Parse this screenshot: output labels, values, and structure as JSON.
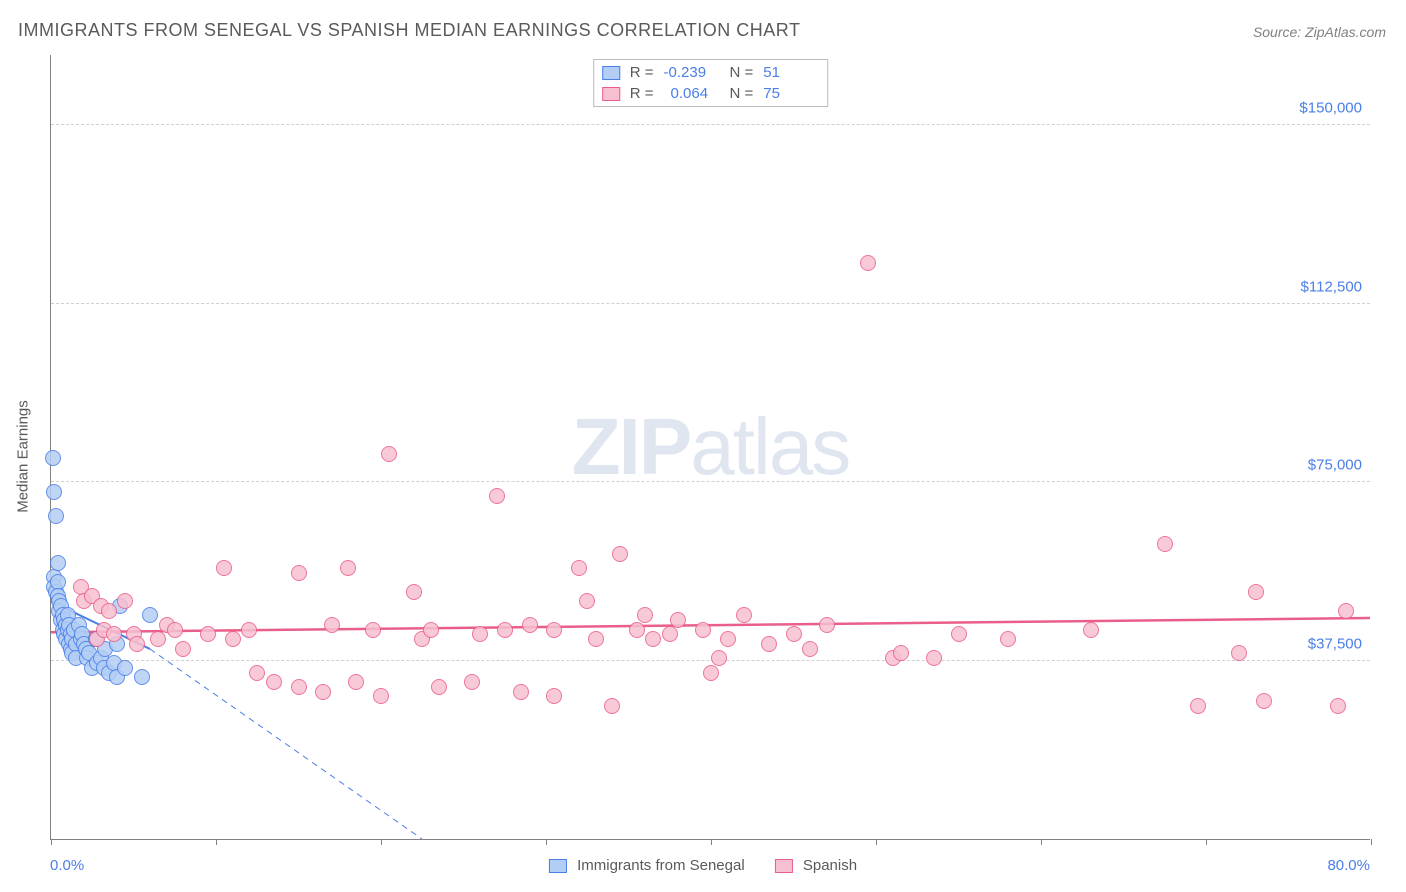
{
  "title": "IMMIGRANTS FROM SENEGAL VS SPANISH MEDIAN EARNINGS CORRELATION CHART",
  "source": "Source: ZipAtlas.com",
  "ylabel": "Median Earnings",
  "watermark_a": "ZIP",
  "watermark_b": "atlas",
  "chart": {
    "type": "scatter",
    "background_color": "#ffffff",
    "grid_color": "#d0d0d0",
    "axis_color": "#808080",
    "label_color": "#5a5a5a",
    "tick_label_color": "#4a7ee8",
    "title_fontsize": 18,
    "label_fontsize": 15,
    "xlim": [
      0,
      80
    ],
    "ylim": [
      0,
      165000
    ],
    "xtick_step": 10,
    "xmin_label": "0.0%",
    "xmax_label": "80.0%",
    "yticks": [
      {
        "value": 37500,
        "label": "$37,500"
      },
      {
        "value": 75000,
        "label": "$75,000"
      },
      {
        "value": 112500,
        "label": "$112,500"
      },
      {
        "value": 150000,
        "label": "$150,000"
      }
    ],
    "marker_radius": 8,
    "marker_stroke_width": 1.5,
    "marker_fill_opacity": 0.25,
    "series": [
      {
        "name": "Immigrants from Senegal",
        "color_stroke": "#4a7ee8",
        "color_fill": "#b3cef5",
        "r_label": "R =",
        "r_value": "-0.239",
        "n_label": "N =",
        "n_value": "51",
        "trend_line": {
          "x1": 0,
          "y1": 50000,
          "x2": 6,
          "y2": 40000,
          "width": 2,
          "dash": ""
        },
        "trend_ext": {
          "x1": 6,
          "y1": 40000,
          "x2": 22.5,
          "y2": 0,
          "width": 1,
          "dash": "6 5"
        },
        "points": [
          [
            0.1,
            80000
          ],
          [
            0.2,
            73000
          ],
          [
            0.3,
            68000
          ],
          [
            0.2,
            55000
          ],
          [
            0.2,
            53000
          ],
          [
            0.3,
            52000
          ],
          [
            0.4,
            58000
          ],
          [
            0.4,
            54000
          ],
          [
            0.4,
            51000
          ],
          [
            0.5,
            50000
          ],
          [
            0.5,
            48000
          ],
          [
            0.6,
            49000
          ],
          [
            0.6,
            46000
          ],
          [
            0.7,
            47000
          ],
          [
            0.7,
            44000
          ],
          [
            0.8,
            46000
          ],
          [
            0.8,
            43000
          ],
          [
            0.9,
            45000
          ],
          [
            0.9,
            42000
          ],
          [
            1.0,
            47000
          ],
          [
            1.0,
            44000
          ],
          [
            1.1,
            45000
          ],
          [
            1.1,
            41000
          ],
          [
            1.2,
            43000
          ],
          [
            1.2,
            40000
          ],
          [
            1.3,
            42000
          ],
          [
            1.3,
            39000
          ],
          [
            1.4,
            44000
          ],
          [
            1.5,
            41000
          ],
          [
            1.5,
            38000
          ],
          [
            1.7,
            45000
          ],
          [
            1.8,
            42000
          ],
          [
            1.9,
            43000
          ],
          [
            2.0,
            41000
          ],
          [
            2.1,
            40000
          ],
          [
            2.2,
            38000
          ],
          [
            2.3,
            39000
          ],
          [
            2.5,
            36000
          ],
          [
            2.7,
            42000
          ],
          [
            2.8,
            37000
          ],
          [
            3.0,
            38000
          ],
          [
            3.2,
            36000
          ],
          [
            3.3,
            40000
          ],
          [
            3.5,
            35000
          ],
          [
            3.8,
            37000
          ],
          [
            4.0,
            34000
          ],
          [
            4.0,
            41000
          ],
          [
            4.2,
            49000
          ],
          [
            4.5,
            36000
          ],
          [
            5.5,
            34000
          ],
          [
            6.0,
            47000
          ]
        ]
      },
      {
        "name": "Spanish",
        "color_stroke": "#ea5f8a",
        "color_fill": "#f7c0d1",
        "r_label": "R =",
        "r_value": "0.064",
        "n_label": "N =",
        "n_value": "75",
        "trend_line": {
          "x1": 0,
          "y1": 43500,
          "x2": 80,
          "y2": 46500,
          "width": 2.5,
          "dash": ""
        },
        "points": [
          [
            1.8,
            53000
          ],
          [
            2.0,
            50000
          ],
          [
            2.5,
            51000
          ],
          [
            2.8,
            42000
          ],
          [
            3.0,
            49000
          ],
          [
            3.2,
            44000
          ],
          [
            3.5,
            48000
          ],
          [
            3.8,
            43000
          ],
          [
            4.5,
            50000
          ],
          [
            5.0,
            43000
          ],
          [
            5.2,
            41000
          ],
          [
            6.5,
            42000
          ],
          [
            7.0,
            45000
          ],
          [
            7.5,
            44000
          ],
          [
            8.0,
            40000
          ],
          [
            9.5,
            43000
          ],
          [
            10.5,
            57000
          ],
          [
            11.0,
            42000
          ],
          [
            12.0,
            44000
          ],
          [
            12.5,
            35000
          ],
          [
            13.5,
            33000
          ],
          [
            15.0,
            56000
          ],
          [
            15.0,
            32000
          ],
          [
            16.5,
            31000
          ],
          [
            17.0,
            45000
          ],
          [
            18.0,
            57000
          ],
          [
            18.5,
            33000
          ],
          [
            19.5,
            44000
          ],
          [
            20.0,
            30000
          ],
          [
            20.5,
            81000
          ],
          [
            22.0,
            52000
          ],
          [
            22.5,
            42000
          ],
          [
            23.0,
            44000
          ],
          [
            23.5,
            32000
          ],
          [
            25.5,
            33000
          ],
          [
            26.0,
            43000
          ],
          [
            27.0,
            72000
          ],
          [
            27.5,
            44000
          ],
          [
            28.5,
            31000
          ],
          [
            29.0,
            45000
          ],
          [
            30.5,
            44000
          ],
          [
            30.5,
            30000
          ],
          [
            32.0,
            57000
          ],
          [
            32.5,
            50000
          ],
          [
            33.0,
            42000
          ],
          [
            34.0,
            28000
          ],
          [
            34.5,
            60000
          ],
          [
            35.5,
            44000
          ],
          [
            36.0,
            47000
          ],
          [
            36.5,
            42000
          ],
          [
            37.5,
            43000
          ],
          [
            38.0,
            46000
          ],
          [
            39.5,
            44000
          ],
          [
            40.0,
            35000
          ],
          [
            40.5,
            38000
          ],
          [
            41.0,
            42000
          ],
          [
            42.0,
            47000
          ],
          [
            43.5,
            41000
          ],
          [
            45.0,
            43000
          ],
          [
            46.0,
            40000
          ],
          [
            47.0,
            45000
          ],
          [
            49.5,
            121000
          ],
          [
            51.0,
            38000
          ],
          [
            51.5,
            39000
          ],
          [
            53.5,
            38000
          ],
          [
            55.0,
            43000
          ],
          [
            58.0,
            42000
          ],
          [
            63.0,
            44000
          ],
          [
            67.5,
            62000
          ],
          [
            69.5,
            28000
          ],
          [
            72.0,
            39000
          ],
          [
            73.0,
            52000
          ],
          [
            73.5,
            29000
          ],
          [
            78.0,
            28000
          ],
          [
            78.5,
            48000
          ]
        ]
      }
    ]
  }
}
